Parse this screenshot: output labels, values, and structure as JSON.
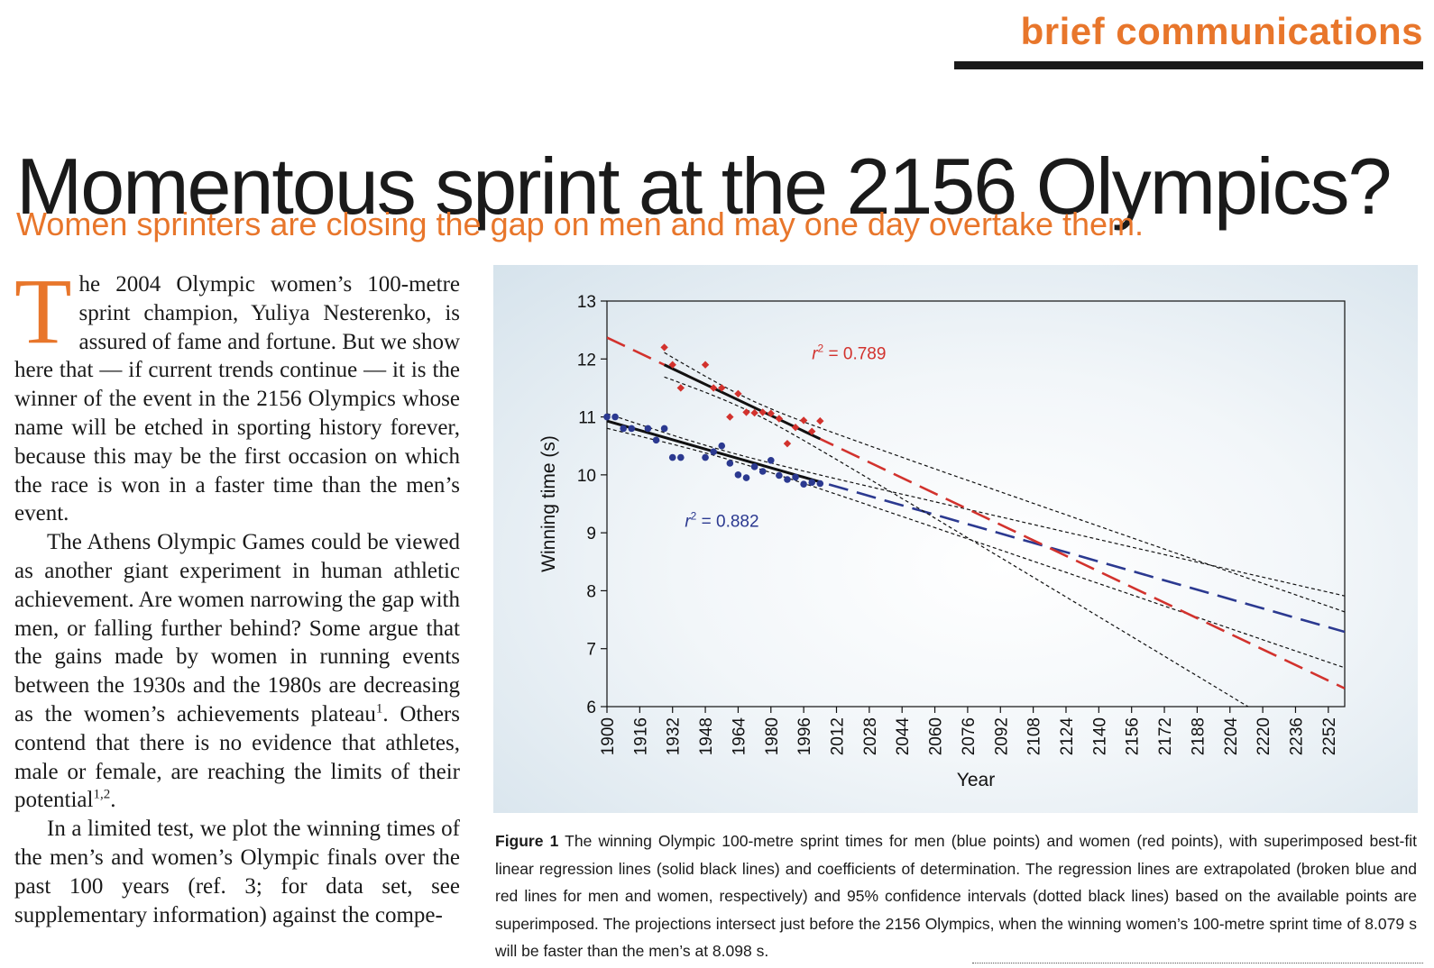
{
  "header": {
    "section_label": "brief communications",
    "title": "Momentous sprint at the 2156 Olympics?",
    "subtitle": "Women sprinters are closing the gap on men and may one day overtake them."
  },
  "article": {
    "drop_cap": "T",
    "p1": "he 2004 Olympic women’s 100-metre sprint champion, Yuliya Nesterenko, is assured of fame and fortune. But we show here that — if current trends continue — it is the winner of the event in the 2156 Olympics whose name will be etched in sporting history forever, because this may be the first occasion on which the race is won in a faster time than the men’s event.",
    "p2_text": "The Athens Olympic Games could be viewed as another giant experiment in human athletic achievement. Are women narrowing the gap with men, or falling further behind? Some argue that the gains made by women in running events between the 1930s and the 1980s are decreasing as the women’s achievements plateau",
    "p2_ref": "1",
    "p2_text2": ". Others contend that there is no evidence that athletes, male or female, are reaching the limits of their potential",
    "p2_ref2": "1,2",
    "p2_end": ".",
    "p3": "In a limited test, we plot the winning times of the men’s and women’s Olympic finals over the past 100 years (ref. 3; for data set, see supplementary information) against the compe-"
  },
  "figure": {
    "caption_label": "Figure 1",
    "caption_text": " The winning Olympic 100-metre sprint times for men (blue points) and women (red points), with superimposed best-fit linear regression lines (solid black lines) and coefficients of determination. The regression lines are extrapolated (broken blue and red lines for men and women, respectively) and 95% confidence intervals (dotted black lines) based on the available points are superimposed. The projections intersect just before the 2156 Olympics, when the winning women’s 100-metre sprint time of 8.079 s will be faster than the men’s at 8.098 s."
  },
  "chart_data": {
    "type": "scatter",
    "xlabel": "Year",
    "ylabel": "Winning time (s)",
    "xlim": [
      1900,
      2260
    ],
    "ylim": [
      6,
      13
    ],
    "x_ticks": [
      1900,
      1916,
      1932,
      1948,
      1964,
      1980,
      1996,
      2012,
      2028,
      2044,
      2060,
      2076,
      2092,
      2108,
      2124,
      2140,
      2156,
      2172,
      2188,
      2204,
      2220,
      2236,
      2252
    ],
    "y_ticks": [
      6,
      7,
      8,
      9,
      10,
      11,
      12,
      13
    ],
    "colors": {
      "men": "#2b3990",
      "women": "#d2322d",
      "ci": "#111111",
      "fit": "#111111"
    },
    "annotations": [
      {
        "label": "r",
        "sup": "2",
        "value": " = 0.789",
        "series": "women",
        "x": 2000,
        "y": 12.0
      },
      {
        "label": "r",
        "sup": "2",
        "value": " = 0.882",
        "series": "men",
        "x": 1938,
        "y": 9.1
      }
    ],
    "series": [
      {
        "key": "men",
        "points": [
          [
            1900,
            11.0
          ],
          [
            1904,
            11.0
          ],
          [
            1908,
            10.8
          ],
          [
            1912,
            10.8
          ],
          [
            1920,
            10.8
          ],
          [
            1924,
            10.6
          ],
          [
            1928,
            10.8
          ],
          [
            1932,
            10.3
          ],
          [
            1936,
            10.3
          ],
          [
            1948,
            10.3
          ],
          [
            1952,
            10.4
          ],
          [
            1956,
            10.5
          ],
          [
            1960,
            10.2
          ],
          [
            1964,
            10.0
          ],
          [
            1968,
            9.95
          ],
          [
            1972,
            10.14
          ],
          [
            1976,
            10.06
          ],
          [
            1980,
            10.25
          ],
          [
            1984,
            9.99
          ],
          [
            1988,
            9.92
          ],
          [
            1992,
            9.96
          ],
          [
            1996,
            9.84
          ],
          [
            2000,
            9.87
          ],
          [
            2004,
            9.85
          ]
        ],
        "fit": {
          "intercept_1900": 10.93,
          "slope": -0.01011
        },
        "extrapolated_to": 2260
      },
      {
        "key": "women",
        "points": [
          [
            1928,
            12.2
          ],
          [
            1932,
            11.9
          ],
          [
            1936,
            11.5
          ],
          [
            1948,
            11.9
          ],
          [
            1952,
            11.5
          ],
          [
            1956,
            11.5
          ],
          [
            1960,
            11.0
          ],
          [
            1964,
            11.4
          ],
          [
            1968,
            11.08
          ],
          [
            1972,
            11.07
          ],
          [
            1976,
            11.08
          ],
          [
            1980,
            11.06
          ],
          [
            1984,
            10.97
          ],
          [
            1988,
            10.54
          ],
          [
            1992,
            10.82
          ],
          [
            1996,
            10.94
          ],
          [
            2000,
            10.75
          ],
          [
            2004,
            10.93
          ]
        ],
        "fit": {
          "intercept_1900": 12.37,
          "slope": -0.01682
        },
        "extrapolated_to": 2260
      }
    ]
  }
}
